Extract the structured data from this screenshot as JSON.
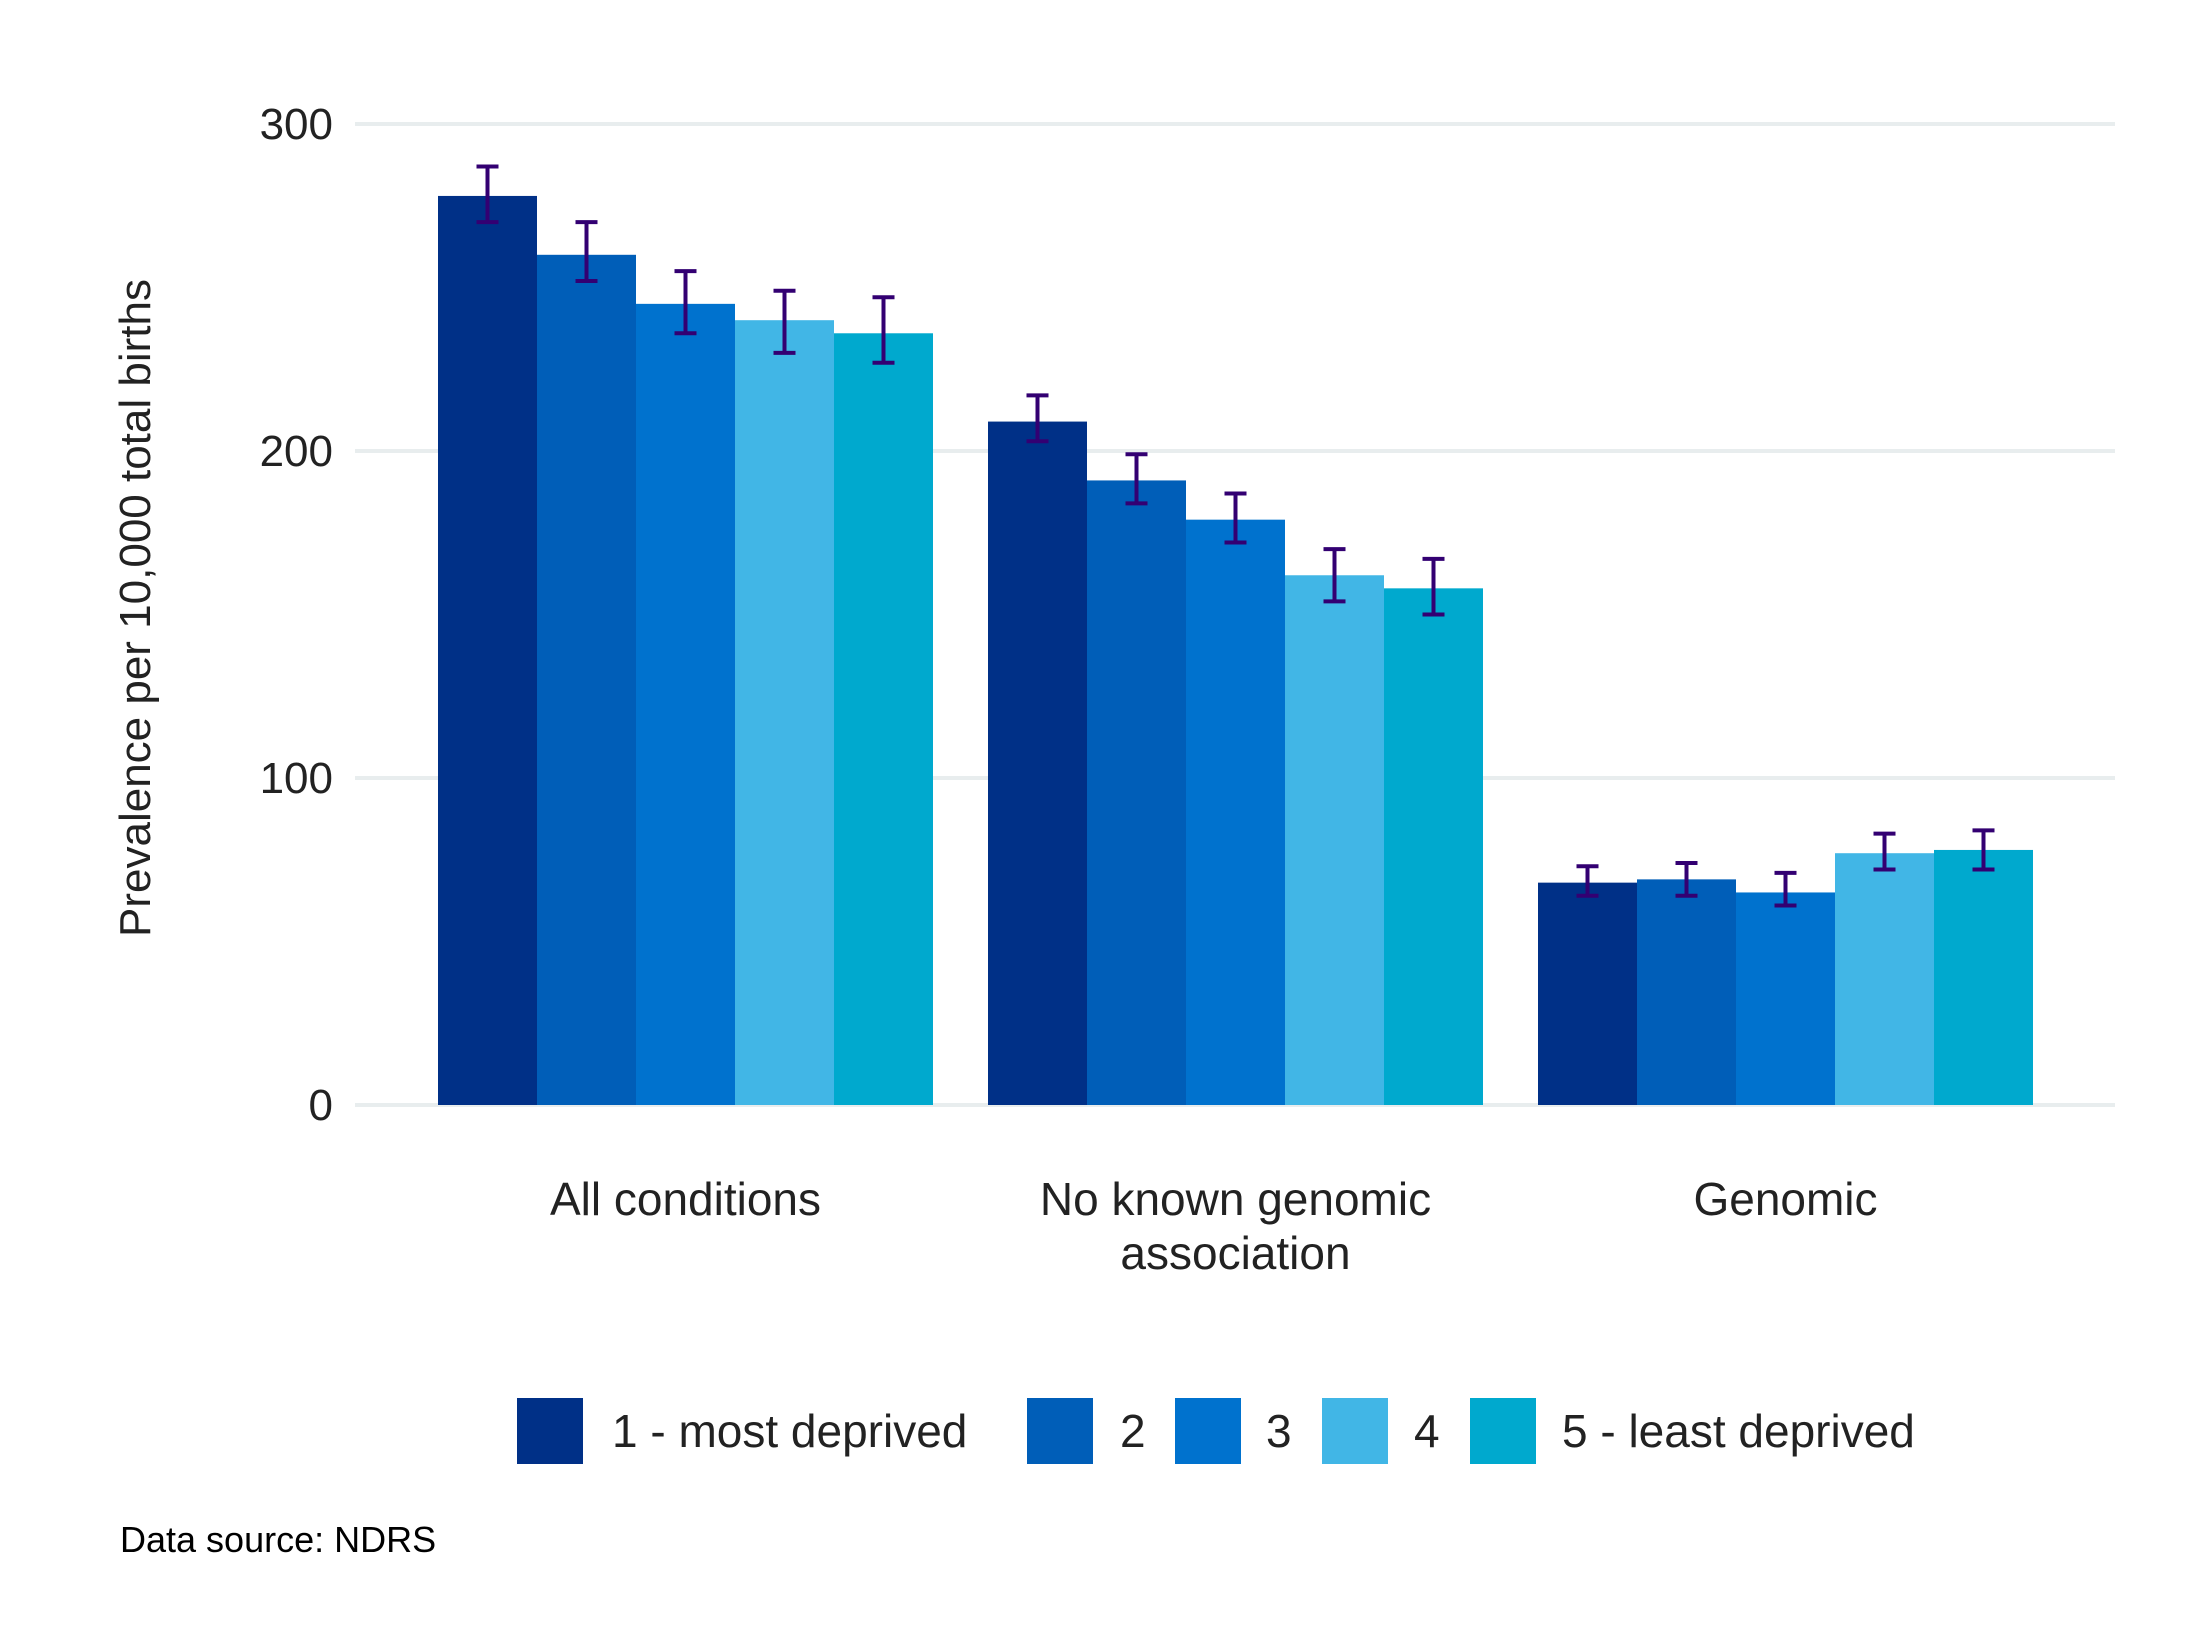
{
  "chart_data": {
    "type": "bar",
    "categories": [
      [
        "All conditions"
      ],
      [
        "No known genomic",
        "association"
      ],
      [
        "Genomic"
      ]
    ],
    "series": [
      {
        "name": "1 - most deprived",
        "color": "#003087",
        "values": [
          278,
          209,
          68
        ],
        "ci_low": [
          270,
          203,
          64
        ],
        "ci_high": [
          287,
          217,
          73
        ]
      },
      {
        "name": "2",
        "color": "#005EB8",
        "values": [
          260,
          191,
          69
        ],
        "ci_low": [
          252,
          184,
          64
        ],
        "ci_high": [
          270,
          199,
          74
        ]
      },
      {
        "name": "3",
        "color": "#0072CE",
        "values": [
          245,
          179,
          65
        ],
        "ci_low": [
          236,
          172,
          61
        ],
        "ci_high": [
          255,
          187,
          71
        ]
      },
      {
        "name": "4",
        "color": "#41B6E6",
        "values": [
          240,
          162,
          77
        ],
        "ci_low": [
          230,
          154,
          72
        ],
        "ci_high": [
          249,
          170,
          83
        ]
      },
      {
        "name": "5 - least deprived",
        "color": "#00A9CE",
        "values": [
          236,
          158,
          78
        ],
        "ci_low": [
          227,
          150,
          72
        ],
        "ci_high": [
          247,
          167,
          84
        ]
      }
    ],
    "ylabel": "Prevalence per 10,000 total births",
    "ylim": [
      0,
      300
    ],
    "yticks": [
      0,
      100,
      200,
      300
    ],
    "grid": true,
    "legend_position": "bottom",
    "error_bar_color": "#330072",
    "source": "Data source: NDRS"
  }
}
